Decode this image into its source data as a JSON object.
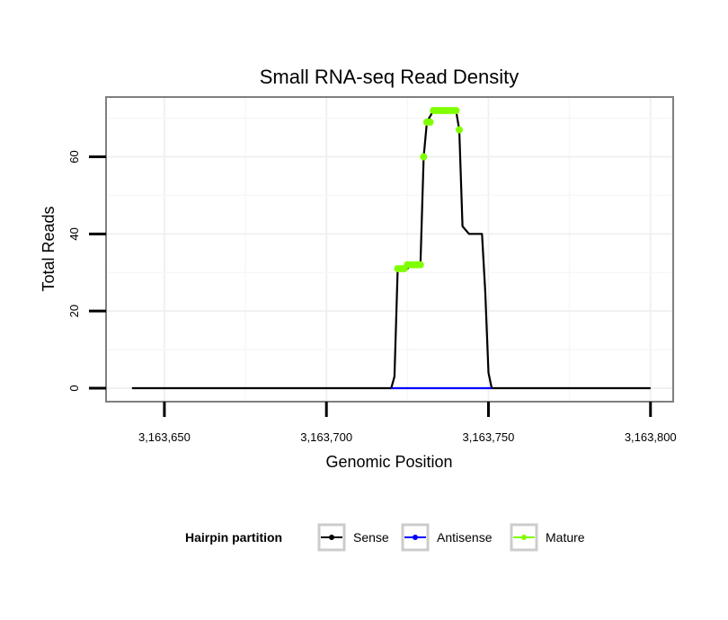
{
  "chart_data": {
    "type": "line",
    "title": "Small RNA-seq Read Density",
    "xlabel": "Genomic Position",
    "ylabel": "Total Reads",
    "xlim": [
      3163632,
      3163807
    ],
    "ylim": [
      -3.5,
      75.5
    ],
    "x_ticks": [
      3163650,
      3163700,
      3163750,
      3163800
    ],
    "x_tick_labels": [
      "3,163,650",
      "3,163,700",
      "3,163,750",
      "3,163,800"
    ],
    "y_ticks": [
      0,
      20,
      40,
      60
    ],
    "y_tick_labels": [
      "0",
      "20",
      "40",
      "60"
    ],
    "grid": true,
    "legend": {
      "title": "Hairpin partition",
      "position": "bottom",
      "entries": [
        "Sense",
        "Antisense",
        "Mature"
      ]
    },
    "series": [
      {
        "name": "Sense",
        "color": "#000000",
        "points": [
          [
            3163640,
            0
          ],
          [
            3163720,
            0
          ],
          [
            3163721,
            3
          ],
          [
            3163722,
            31
          ],
          [
            3163725,
            31
          ],
          [
            3163726,
            32
          ],
          [
            3163729,
            32
          ],
          [
            3163730,
            60
          ],
          [
            3163731,
            69
          ],
          [
            3163733,
            72
          ],
          [
            3163740,
            72
          ],
          [
            3163741,
            67
          ],
          [
            3163742,
            42
          ],
          [
            3163744,
            40
          ],
          [
            3163748,
            40
          ],
          [
            3163749,
            25
          ],
          [
            3163750,
            4
          ],
          [
            3163751,
            0
          ],
          [
            3163800,
            0
          ]
        ]
      },
      {
        "name": "Antisense",
        "color": "#0000ff",
        "points": [
          [
            3163720,
            0
          ],
          [
            3163751,
            0
          ]
        ]
      },
      {
        "name": "Mature",
        "color": "#7fff00",
        "markers": [
          [
            3163722,
            31
          ],
          [
            3163723,
            31
          ],
          [
            3163724,
            31
          ],
          [
            3163725,
            32
          ],
          [
            3163726,
            32
          ],
          [
            3163727,
            32
          ],
          [
            3163728,
            32
          ],
          [
            3163729,
            32
          ],
          [
            3163730,
            60
          ],
          [
            3163731,
            69
          ],
          [
            3163732,
            69
          ],
          [
            3163733,
            72
          ],
          [
            3163734,
            72
          ],
          [
            3163735,
            72
          ],
          [
            3163736,
            72
          ],
          [
            3163737,
            72
          ],
          [
            3163738,
            72
          ],
          [
            3163739,
            72
          ],
          [
            3163740,
            72
          ],
          [
            3163741,
            67
          ]
        ],
        "line_segments": [
          [
            [
              3163722,
              31
            ],
            [
              3163725,
              31
            ]
          ],
          [
            [
              3163725,
              32
            ],
            [
              3163729,
              32
            ]
          ],
          [
            [
              3163733,
              72
            ],
            [
              3163740,
              72
            ]
          ]
        ]
      }
    ]
  }
}
